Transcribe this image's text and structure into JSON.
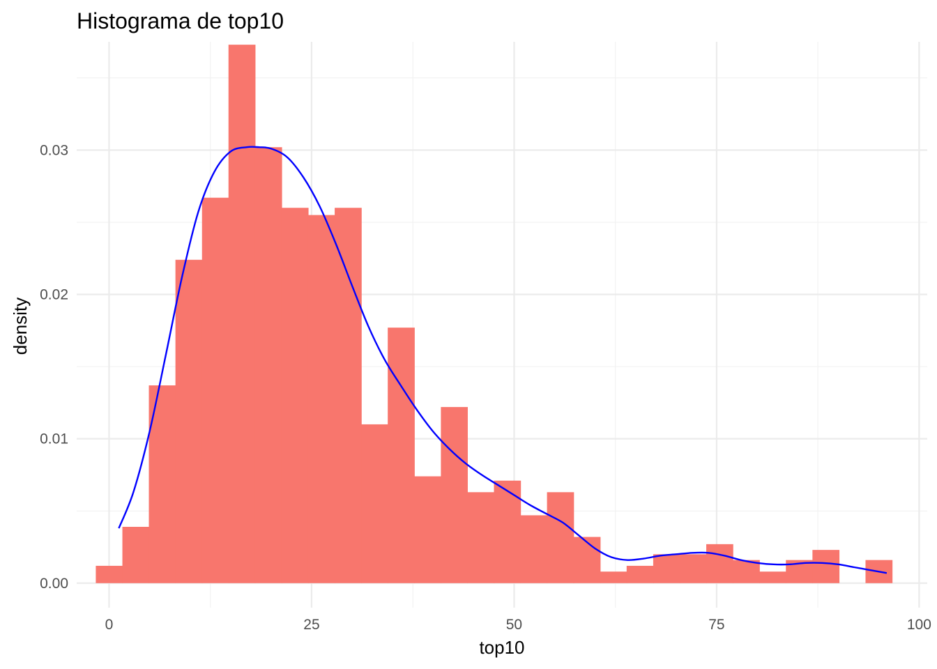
{
  "chart_data": {
    "type": "bar",
    "subtype": "histogram-with-density",
    "title": "Histograma de top10",
    "xlabel": "top10",
    "ylabel": "density",
    "xlim": [
      -4,
      101
    ],
    "ylim": [
      -0.0017,
      0.0375
    ],
    "x_ticks": [
      0,
      25,
      50,
      75,
      100
    ],
    "x_tick_labels": [
      "0",
      "25",
      "50",
      "75",
      "100"
    ],
    "y_ticks": [
      0.0,
      0.01,
      0.02,
      0.03
    ],
    "y_tick_labels": [
      "0.00",
      "0.01",
      "0.02",
      "0.03"
    ],
    "grid": true,
    "bin_width": 3.276,
    "bins": [
      {
        "x_start": -1.64,
        "x_end": 1.64,
        "density": 0.0012
      },
      {
        "x_start": 1.64,
        "x_end": 4.91,
        "density": 0.0039
      },
      {
        "x_start": 4.91,
        "x_end": 8.19,
        "density": 0.0137
      },
      {
        "x_start": 8.19,
        "x_end": 11.47,
        "density": 0.0224
      },
      {
        "x_start": 11.47,
        "x_end": 14.74,
        "density": 0.0267
      },
      {
        "x_start": 14.74,
        "x_end": 18.02,
        "density": 0.0373
      },
      {
        "x_start": 18.02,
        "x_end": 21.3,
        "density": 0.0302
      },
      {
        "x_start": 21.3,
        "x_end": 24.57,
        "density": 0.026
      },
      {
        "x_start": 24.57,
        "x_end": 27.85,
        "density": 0.0255
      },
      {
        "x_start": 27.85,
        "x_end": 31.13,
        "density": 0.026
      },
      {
        "x_start": 31.13,
        "x_end": 34.4,
        "density": 0.011
      },
      {
        "x_start": 34.4,
        "x_end": 37.68,
        "density": 0.0177
      },
      {
        "x_start": 37.68,
        "x_end": 40.96,
        "density": 0.0074
      },
      {
        "x_start": 40.96,
        "x_end": 44.23,
        "density": 0.0122
      },
      {
        "x_start": 44.23,
        "x_end": 47.51,
        "density": 0.0063
      },
      {
        "x_start": 47.51,
        "x_end": 50.79,
        "density": 0.0071
      },
      {
        "x_start": 50.79,
        "x_end": 54.06,
        "density": 0.0047
      },
      {
        "x_start": 54.06,
        "x_end": 57.34,
        "density": 0.0063
      },
      {
        "x_start": 57.34,
        "x_end": 60.62,
        "density": 0.0032
      },
      {
        "x_start": 60.62,
        "x_end": 63.89,
        "density": 0.0008
      },
      {
        "x_start": 63.89,
        "x_end": 67.17,
        "density": 0.0012
      },
      {
        "x_start": 67.17,
        "x_end": 70.45,
        "density": 0.002
      },
      {
        "x_start": 70.45,
        "x_end": 73.72,
        "density": 0.002
      },
      {
        "x_start": 73.72,
        "x_end": 77.0,
        "density": 0.0027
      },
      {
        "x_start": 77.0,
        "x_end": 80.28,
        "density": 0.0016
      },
      {
        "x_start": 80.28,
        "x_end": 83.55,
        "density": 0.0008
      },
      {
        "x_start": 83.55,
        "x_end": 86.83,
        "density": 0.0016
      },
      {
        "x_start": 86.83,
        "x_end": 90.11,
        "density": 0.0023
      },
      {
        "x_start": 90.11,
        "x_end": 93.38,
        "density": 0.0
      },
      {
        "x_start": 93.38,
        "x_end": 96.66,
        "density": 0.0016
      }
    ],
    "density_curve": {
      "x": [
        1.2,
        3,
        5,
        7,
        9,
        11,
        13,
        15,
        17,
        18.5,
        20,
        22,
        24,
        26,
        28,
        30,
        32,
        34,
        36,
        38,
        40,
        42,
        44,
        46,
        48,
        50,
        52,
        54,
        56,
        58,
        60,
        62,
        64,
        66,
        68,
        70,
        72,
        74,
        76,
        78,
        80,
        82,
        84,
        86,
        88,
        90,
        92,
        94,
        96
      ],
      "y": [
        0.0038,
        0.0063,
        0.0105,
        0.0158,
        0.0212,
        0.0257,
        0.0285,
        0.0299,
        0.0302,
        0.0302,
        0.0301,
        0.0295,
        0.0281,
        0.0261,
        0.0235,
        0.0206,
        0.0178,
        0.0155,
        0.0137,
        0.012,
        0.0105,
        0.0093,
        0.0083,
        0.0075,
        0.0068,
        0.0061,
        0.0054,
        0.0048,
        0.0042,
        0.0033,
        0.0024,
        0.0018,
        0.0016,
        0.0017,
        0.0019,
        0.002,
        0.0021,
        0.0021,
        0.0019,
        0.0016,
        0.0014,
        0.0013,
        0.0013,
        0.0014,
        0.0014,
        0.0013,
        0.0011,
        0.0009,
        0.0007
      ]
    },
    "colors": {
      "bars": "#F8766D",
      "density_line": "#0000FF"
    }
  }
}
